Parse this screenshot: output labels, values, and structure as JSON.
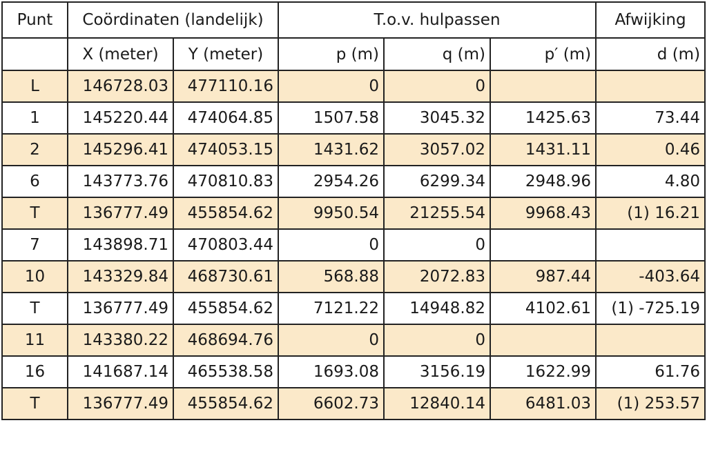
{
  "table": {
    "header": [
      "Punt",
      "Coördinaten (landelijk)",
      "T.o.v. hulpassen",
      "Afwijking"
    ],
    "subheader": [
      "X (meter)",
      "Y (meter)",
      "p (m)",
      "q (m)",
      "p′ (m)",
      "d (m)"
    ],
    "rows": [
      [
        "L",
        "146728.03",
        "477110.16",
        "0",
        "0",
        null,
        null
      ],
      [
        "1",
        "145220.44",
        "474064.85",
        "1507.58",
        "3045.32",
        "1425.63",
        "73.44"
      ],
      [
        "2",
        "145296.41",
        "474053.15",
        "1431.62",
        "3057.02",
        "1431.11",
        "0.46"
      ],
      [
        "6",
        "143773.76",
        "470810.83",
        "2954.26",
        "6299.34",
        "2948.96",
        "4.80"
      ],
      [
        "T",
        "136777.49",
        "455854.62",
        "9950.54",
        "21255.54",
        "9968.43",
        "(1) 16.21"
      ],
      [
        "7",
        "143898.71",
        "470803.44",
        "0",
        "0",
        null,
        null
      ],
      [
        "10",
        "143329.84",
        "468730.61",
        "568.88",
        "2072.83",
        "987.44",
        "-403.64"
      ],
      [
        "T",
        "136777.49",
        "455854.62",
        "7121.22",
        "14948.82",
        "4102.61",
        "(1) -725.19"
      ],
      [
        "11",
        "143380.22",
        "468694.76",
        "0",
        "0",
        null,
        null
      ],
      [
        "16",
        "141687.14",
        "465538.58",
        "1693.08",
        "3156.19",
        "1622.99",
        "61.76"
      ],
      [
        "T",
        "136777.49",
        "455854.62",
        "6602.73",
        "12840.14",
        "6481.03",
        "(1) 253.57"
      ]
    ]
  }
}
